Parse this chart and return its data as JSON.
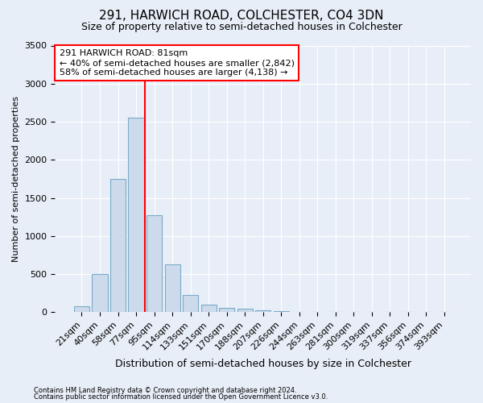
{
  "title_line1": "291, HARWICH ROAD, COLCHESTER, CO4 3DN",
  "title_line2": "Size of property relative to semi-detached houses in Colchester",
  "xlabel": "Distribution of semi-detached houses by size in Colchester",
  "ylabel": "Number of semi-detached properties",
  "categories": [
    "21sqm",
    "40sqm",
    "58sqm",
    "77sqm",
    "95sqm",
    "114sqm",
    "133sqm",
    "151sqm",
    "170sqm",
    "188sqm",
    "207sqm",
    "226sqm",
    "244sqm",
    "263sqm",
    "281sqm",
    "300sqm",
    "319sqm",
    "337sqm",
    "356sqm",
    "374sqm",
    "393sqm"
  ],
  "values": [
    75,
    500,
    1750,
    2550,
    1275,
    625,
    225,
    100,
    60,
    45,
    30,
    15,
    5,
    3,
    2,
    1,
    1,
    0,
    0,
    0,
    0
  ],
  "bar_color": "#ccdaeb",
  "bar_edge_color": "#7aaac8",
  "vline_x": 3.5,
  "vline_color": "red",
  "annotation_text": "291 HARWICH ROAD: 81sqm\n← 40% of semi-detached houses are smaller (2,842)\n58% of semi-detached houses are larger (4,138) →",
  "annotation_box_color": "white",
  "annotation_box_edge_color": "red",
  "ylim": [
    0,
    3500
  ],
  "yticks": [
    0,
    500,
    1000,
    1500,
    2000,
    2500,
    3000,
    3500
  ],
  "footer_line1": "Contains HM Land Registry data © Crown copyright and database right 2024.",
  "footer_line2": "Contains public sector information licensed under the Open Government Licence v3.0.",
  "background_color": "#e8eef7",
  "grid_color": "white",
  "title1_fontsize": 11,
  "title2_fontsize": 9,
  "ylabel_fontsize": 8,
  "xlabel_fontsize": 9,
  "tick_fontsize": 8,
  "annot_fontsize": 8
}
